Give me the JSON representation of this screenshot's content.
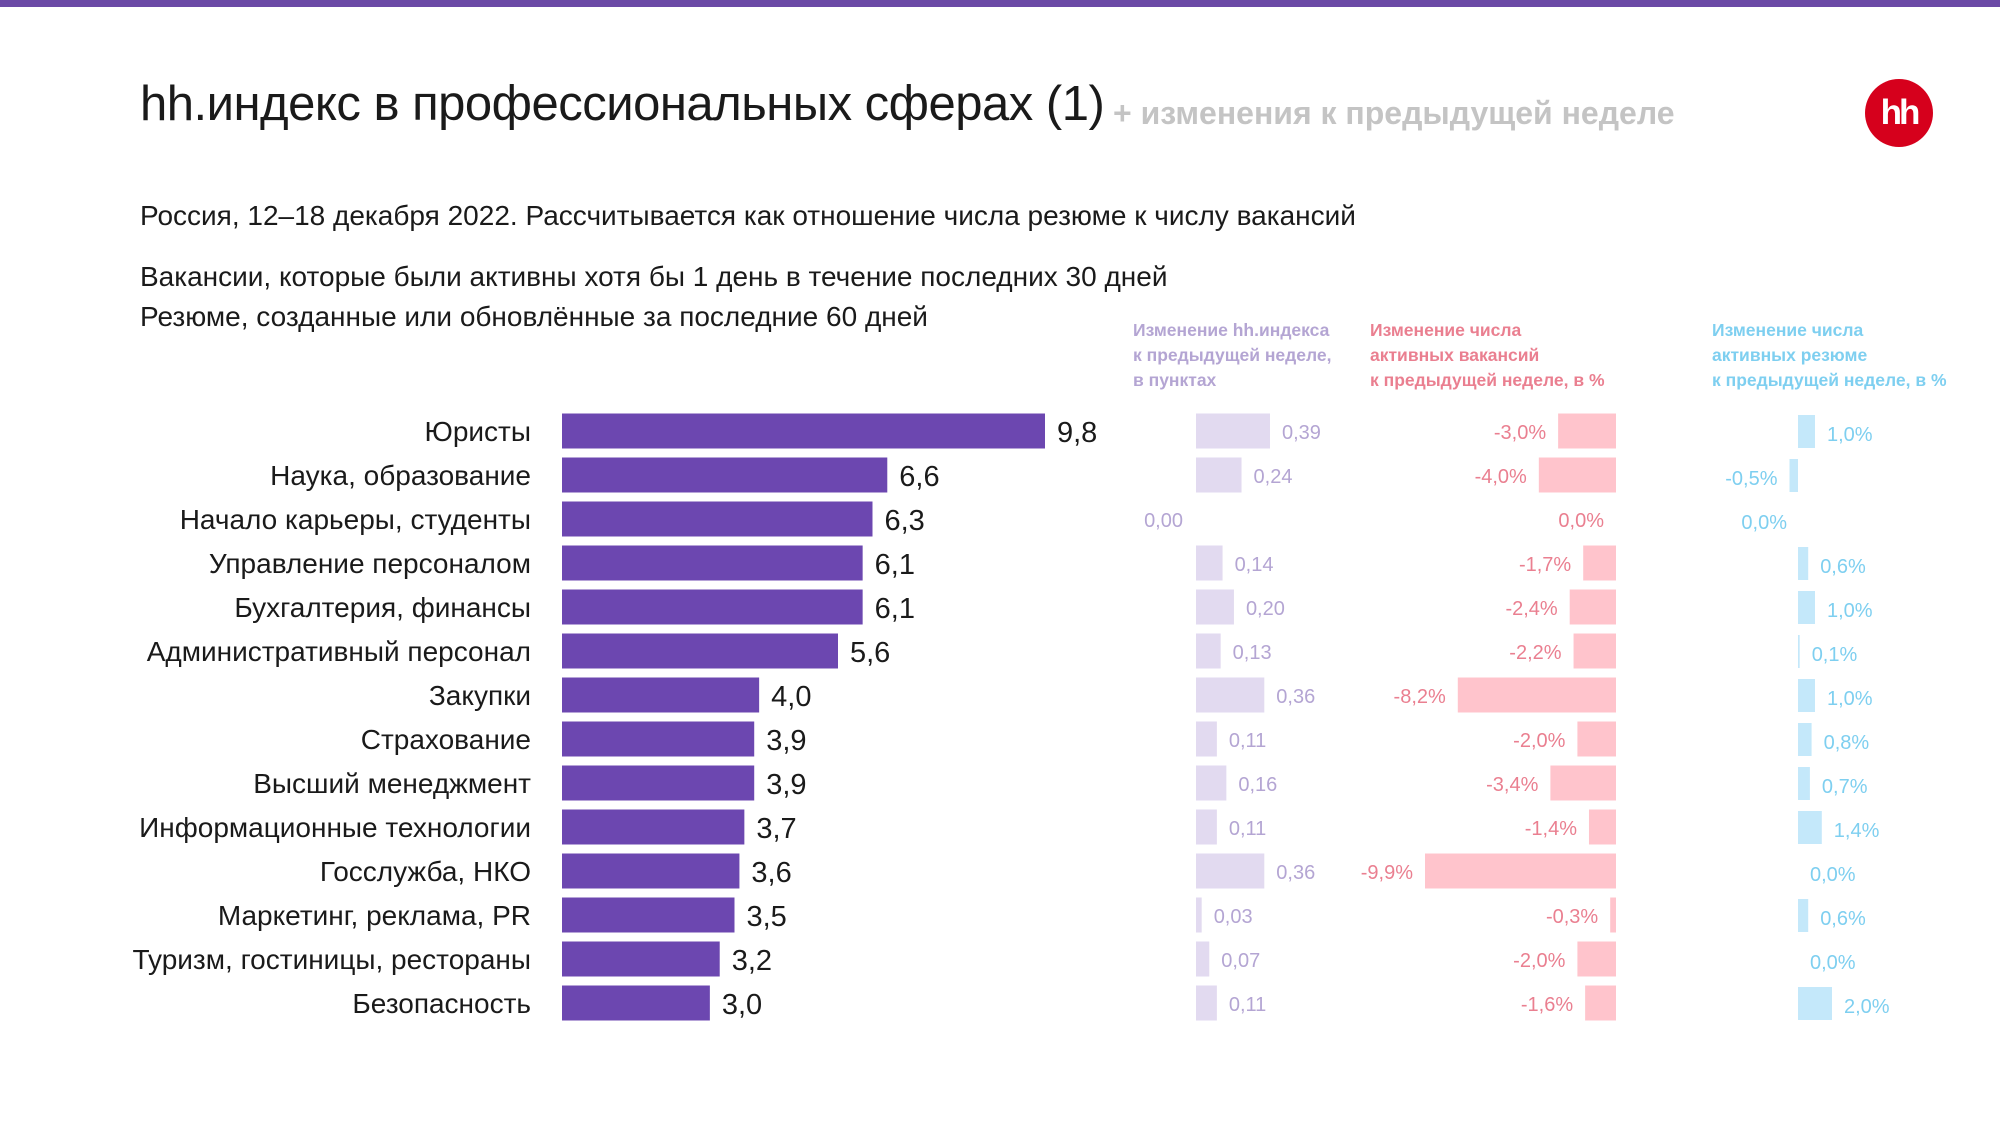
{
  "header": {
    "title": "hh.индекс в профессиональных сферах (1)",
    "title_addition": "+ изменения к предыдущей неделе",
    "logo_text": "hh",
    "description_line1": "Россия, 12–18 декабря 2022. Рассчитывается как отношение числа резюме к числу вакансий",
    "description_line2": "Вакансии, которые были активны хотя бы 1 день в течение последних 30 дней",
    "description_line3": "Резюме, созданные или обновлённые за последние 60 дней"
  },
  "colors": {
    "top_bar": "#6b4aa6",
    "main_bar": "#6c47b0",
    "index_change_bar": "#e2daf0",
    "index_change_text": "#b4a5d3",
    "vacancy_bar": "#ffc4cc",
    "vacancy_text": "#ea7f90",
    "resume_bar": "#c4e8fa",
    "resume_text": "#7ecff0",
    "logo_bg": "#d6001c",
    "subtitle_add": "#c4c4c4"
  },
  "column_headers": {
    "index_change": [
      "Изменение hh.индекса",
      "к предыдущей неделе,",
      "в пунктах"
    ],
    "vacancy_change": [
      "Изменение числа",
      "активных вакансий",
      "к предыдущей неделе, в %"
    ],
    "resume_change": [
      "Изменение числа",
      "активных резюме",
      "к предыдущей неделе, в %"
    ]
  },
  "chart_data": {
    "type": "bar",
    "orientation": "horizontal",
    "categories": [
      "Юристы",
      "Наука, образование",
      "Начало карьеры, студенты",
      "Управление персоналом",
      "Бухгалтерия, финансы",
      "Административный персонал",
      "Закупки",
      "Страхование",
      "Высший менеджмент",
      "Информационные технологии",
      "Госслужба, НКО",
      "Маркетинг, реклама, PR",
      "Туризм, гостиницы, рестораны",
      "Безопасность"
    ],
    "series": [
      {
        "values": [
          9.8,
          6.6,
          6.3,
          6.1,
          6.1,
          5.6,
          4.0,
          3.9,
          3.9,
          3.7,
          3.6,
          3.5,
          3.2,
          3.0
        ],
        "labels": [
          "9,8",
          "6,6",
          "6,3",
          "6,1",
          "6,1",
          "5,6",
          "4,0",
          "3,9",
          "3,9",
          "3,7",
          "3,6",
          "3,5",
          "3,2",
          "3,0"
        ]
      },
      {
        "values": [
          0.39,
          0.24,
          0.0,
          0.14,
          0.2,
          0.13,
          0.36,
          0.11,
          0.16,
          0.11,
          0.36,
          0.03,
          0.07,
          0.11
        ],
        "labels": [
          "0,39",
          "0,24",
          "0,00",
          "0,14",
          "0,20",
          "0,13",
          "0,36",
          "0,11",
          "0,16",
          "0,11",
          "0,36",
          "0,03",
          "0,07",
          "0,11"
        ]
      },
      {
        "values": [
          -3.0,
          -4.0,
          0.0,
          -1.7,
          -2.4,
          -2.2,
          -8.2,
          -2.0,
          -3.4,
          -1.4,
          -9.9,
          -0.3,
          -2.0,
          -1.6
        ],
        "labels": [
          "-3,0%",
          "-4,0%",
          "0,0%",
          "-1,7%",
          "-2,4%",
          "-2,2%",
          "-8,2%",
          "-2,0%",
          "-3,4%",
          "-1,4%",
          "-9,9%",
          "-0,3%",
          "-2,0%",
          "-1,6%"
        ]
      },
      {
        "values": [
          1.0,
          -0.5,
          0.0,
          0.6,
          1.0,
          0.1,
          1.0,
          0.8,
          0.7,
          1.4,
          0.0,
          0.6,
          0.0,
          2.0
        ],
        "labels": [
          "1,0%",
          "-0,5%",
          "0,0%",
          "0,6%",
          "1,0%",
          "0,1%",
          "1,0%",
          "0,8%",
          "0,7%",
          "1,4%",
          "0,0%",
          "0,6%",
          "0,0%",
          "2,0%"
        ]
      }
    ],
    "xlim_main": [
      0,
      10
    ],
    "grid": false,
    "legend": "none"
  }
}
